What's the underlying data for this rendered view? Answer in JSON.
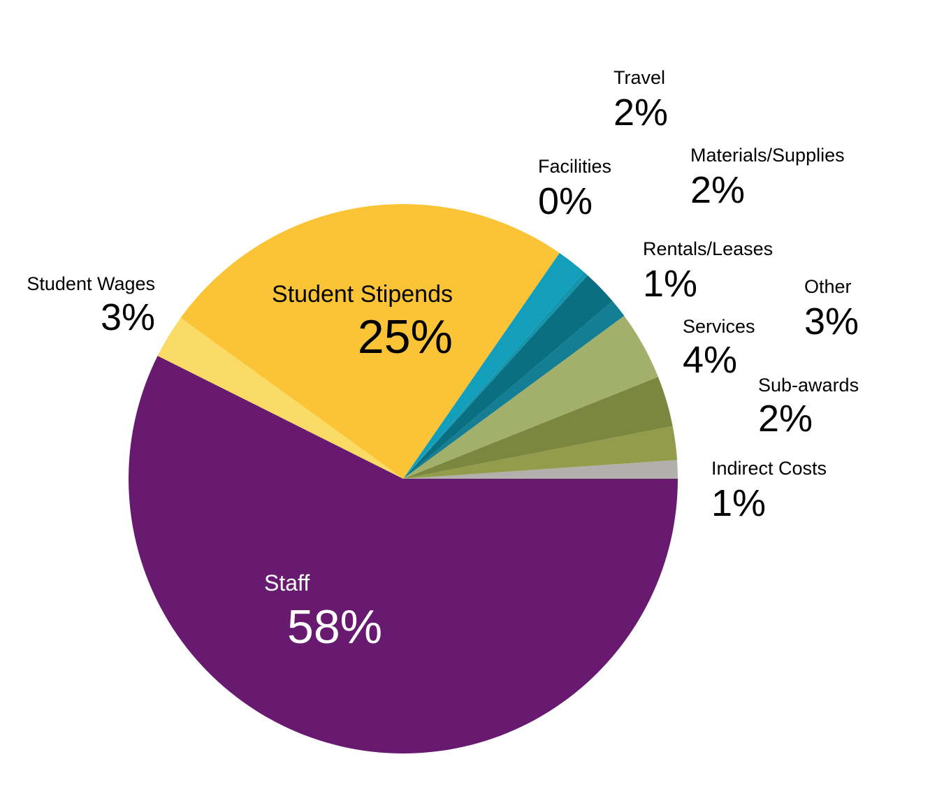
{
  "chart_data": {
    "type": "pie",
    "title": "",
    "start": "3 o'clock, counter-clockwise",
    "slices": [
      {
        "label": "Indirect Costs",
        "value_label": "1%",
        "value": 1.1,
        "color": "#b1b0ac",
        "label_color": "#000000"
      },
      {
        "label": "Sub-awards",
        "value_label": "2%",
        "value": 2.0,
        "color": "#939c4a",
        "label_color": "#000000"
      },
      {
        "label": "Other",
        "value_label": "3%",
        "value": 3.0,
        "color": "#7b863e",
        "label_color": "#000000"
      },
      {
        "label": "Services",
        "value_label": "4%",
        "value": 4.1,
        "color": "#a2b06c",
        "label_color": "#000000"
      },
      {
        "label": "Rentals/Leases",
        "value_label": "1%",
        "value": 1.1,
        "color": "#147f94",
        "label_color": "#000000"
      },
      {
        "label": "Materials/Supplies",
        "value_label": "2%",
        "value": 2.1,
        "color": "#096f81",
        "label_color": "#000000"
      },
      {
        "label": "Facilities",
        "value_label": "0%",
        "value": 0.3,
        "color": "#1596ad",
        "label_color": "#000000"
      },
      {
        "label": "Travel",
        "value_label": "2%",
        "value": 1.8,
        "color": "#139fbb",
        "label_color": "#000000"
      },
      {
        "label": "Student Stipends",
        "value_label": "25%",
        "value": 24.9,
        "color": "#fbc437",
        "label_color": "#000000"
      },
      {
        "label": "Student Wages",
        "value_label": "3%",
        "value": 2.6,
        "color": "#f9db66",
        "label_color": "#000000"
      },
      {
        "label": "Staff",
        "value_label": "58%",
        "value": 57.9,
        "color": "#681a71",
        "label_color": "#ffffff"
      }
    ]
  }
}
